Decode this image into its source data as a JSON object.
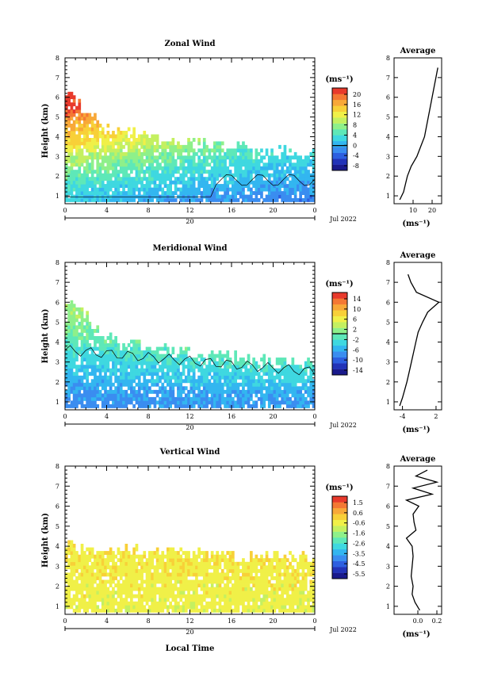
{
  "chart_data": [
    {
      "type": "heatmap",
      "title": "Zonal Wind",
      "ylabel": "Height (km)",
      "xlabel": "",
      "x_ticks": [
        "0",
        "4",
        "8",
        "12",
        "16",
        "20",
        "0"
      ],
      "y_ticks": [
        "1",
        "2",
        "3",
        "4",
        "5",
        "6",
        "7",
        "8"
      ],
      "xlim": [
        0,
        24
      ],
      "ylim": [
        0.6,
        8
      ],
      "date_day": "20",
      "date_label": "Jul 2022",
      "colorbar_unit": "(ms⁻¹)",
      "colorbar_ticks": [
        "20",
        "16",
        "12",
        "8",
        "4",
        "0",
        "-4",
        "-8"
      ],
      "colorbar_range": [
        -9.5,
        22
      ],
      "grid": false,
      "contour_level": 0,
      "estimated_field": {
        "description_of_values": "wind speed in ms-1 by local time (h) and height (km)",
        "profile_height_km": [
          0.8,
          1.5,
          2.0,
          2.5,
          3.0,
          3.5,
          4.0,
          4.5,
          5.0,
          5.5
        ],
        "value_at_0h": [
          2,
          4,
          6,
          8,
          10,
          13,
          15,
          16,
          19,
          21
        ],
        "value_at_20h": [
          -2,
          0,
          1,
          2,
          3,
          4,
          5,
          6,
          7,
          8
        ],
        "data_top_km": [
          6.3,
          4.3,
          4.0,
          3.6,
          3.4,
          3.2,
          3.0
        ]
      },
      "average_profile": {
        "title": "Average",
        "xlabel": "(ms⁻¹)",
        "x_ticks": [
          "10",
          "20"
        ],
        "xlim": [
          0,
          25
        ],
        "height_km": [
          0.8,
          1.2,
          1.6,
          2.0,
          2.5,
          3.0,
          3.5,
          4.0,
          4.5,
          5.0,
          5.5,
          6.0,
          6.5,
          7.0,
          7.5
        ],
        "value": [
          3,
          5,
          6,
          7,
          9,
          12,
          14,
          16,
          17,
          18,
          19,
          20,
          21,
          22,
          23
        ]
      }
    },
    {
      "type": "heatmap",
      "title": "Meridional Wind",
      "ylabel": "Height (km)",
      "xlabel": "",
      "x_ticks": [
        "0",
        "4",
        "8",
        "12",
        "16",
        "20",
        "0"
      ],
      "y_ticks": [
        "1",
        "2",
        "3",
        "4",
        "5",
        "6",
        "7",
        "8"
      ],
      "xlim": [
        0,
        24
      ],
      "ylim": [
        0.6,
        8
      ],
      "date_day": "20",
      "date_label": "Jul 2022",
      "colorbar_unit": "(ms⁻¹)",
      "colorbar_ticks": [
        "14",
        "10",
        "6",
        "2",
        "-2",
        "-6",
        "-10",
        "-14"
      ],
      "colorbar_range": [
        -16,
        16
      ],
      "grid": false,
      "contour_level": 0,
      "estimated_field": {
        "description_of_values": "wind speed in ms-1 by local time (h) and height (km)",
        "profile_height_km": [
          0.8,
          1.5,
          2.0,
          2.5,
          3.0,
          3.5,
          4.0,
          4.5,
          5.0,
          5.5
        ],
        "value_at_0h": [
          -8,
          -7,
          -6,
          -5,
          -4,
          -3,
          -1,
          0,
          1,
          2
        ],
        "value_at_20h": [
          -7,
          -6,
          -4,
          -3,
          -1,
          0,
          1,
          2,
          3,
          3
        ],
        "data_top_km": [
          6.2,
          4.2,
          3.6,
          3.4,
          3.2,
          3.0,
          2.8
        ]
      },
      "average_profile": {
        "title": "Average",
        "xlabel": "(ms⁻¹)",
        "x_ticks": [
          "-4",
          "2"
        ],
        "xlim": [
          -5.5,
          3
        ],
        "height_km": [
          0.8,
          1.2,
          1.6,
          2.0,
          2.5,
          3.0,
          3.5,
          4.0,
          4.5,
          5.0,
          5.5,
          6.0,
          6.5,
          7.0,
          7.4
        ],
        "value": [
          -4.5,
          -4,
          -3.6,
          -3.2,
          -2.8,
          -2.4,
          -2.0,
          -1.6,
          -1.2,
          -0.4,
          0.5,
          2.5,
          -1.5,
          -2.5,
          -3.0
        ]
      }
    },
    {
      "type": "heatmap",
      "title": "Vertical Wind",
      "ylabel": "Height (km)",
      "xlabel": "Local Time",
      "x_ticks": [
        "0",
        "4",
        "8",
        "12",
        "16",
        "20",
        "0"
      ],
      "y_ticks": [
        "1",
        "2",
        "3",
        "4",
        "5",
        "6",
        "7",
        "8"
      ],
      "xlim": [
        0,
        24
      ],
      "ylim": [
        0.6,
        8
      ],
      "date_day": "20",
      "date_label": "Jul 2022",
      "colorbar_unit": "(ms⁻¹)",
      "colorbar_ticks": [
        "1.5",
        "0.6",
        "-0.6",
        "-1.6",
        "-2.6",
        "-3.5",
        "-4.5",
        "-5.5"
      ],
      "colorbar_range": [
        -6.2,
        2.2
      ],
      "grid": false,
      "estimated_field": {
        "description_of_values": "vertical wind in ms-1 by local time (h) and height (km)",
        "profile_height_km": [
          0.8,
          1.5,
          2.0,
          2.5,
          3.0,
          3.5,
          4.0,
          4.5,
          5.0,
          5.5
        ],
        "value_at_0h": [
          -0.6,
          -0.5,
          -0.5,
          -0.4,
          -0.4,
          -0.3,
          -0.2,
          -0.1,
          0.0,
          0.1
        ],
        "value_at_20h": [
          -0.6,
          -0.5,
          -0.5,
          -0.4,
          -0.4,
          -0.3,
          -0.2,
          -0.1,
          0.0,
          0.1
        ],
        "data_top_km": [
          4.0,
          3.8,
          3.7,
          3.6,
          3.5,
          3.5,
          3.6
        ]
      },
      "average_profile": {
        "title": "Average",
        "xlabel": "(ms⁻¹)",
        "x_ticks": [
          "0.0",
          "0.2"
        ],
        "xlim": [
          -0.25,
          0.25
        ],
        "height_km": [
          0.8,
          1.2,
          1.6,
          2.0,
          2.5,
          3.0,
          3.5,
          4.0,
          4.4,
          4.8,
          5.2,
          5.6,
          6.0,
          6.3,
          6.6,
          6.9,
          7.2,
          7.5,
          7.8
        ],
        "value": [
          0.02,
          -0.03,
          -0.06,
          -0.05,
          -0.07,
          -0.06,
          -0.05,
          -0.06,
          -0.12,
          -0.02,
          -0.04,
          -0.05,
          0.01,
          -0.12,
          0.15,
          -0.05,
          0.2,
          -0.02,
          0.1
        ]
      }
    }
  ]
}
